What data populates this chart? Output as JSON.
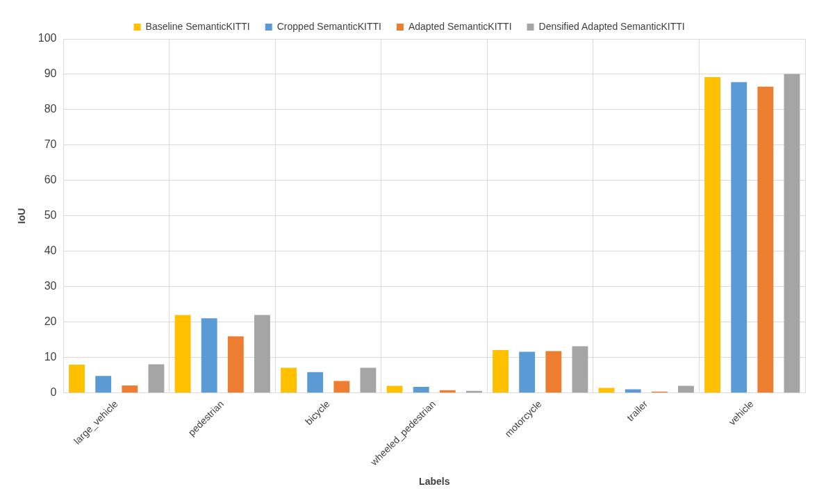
{
  "chart_data": {
    "type": "bar",
    "xlabel": "Labels",
    "ylabel": "IoU",
    "categories": [
      "large_vehicle",
      "pedestrian",
      "bicycle",
      "wheeled_pedestrian",
      "motorcycle",
      "trailer",
      "vehicle"
    ],
    "series": [
      {
        "name": "Baseline SemanticKITTI",
        "color": "#ffc000",
        "values": [
          8,
          22,
          7.1,
          2.0,
          12.1,
          1.4,
          89.2
        ]
      },
      {
        "name": "Cropped SemanticKITTI",
        "color": "#5b9bd5",
        "values": [
          4.8,
          21.1,
          5.9,
          1.7,
          11.6,
          1.0,
          87.8
        ]
      },
      {
        "name": "Adapted SemanticKITTI",
        "color": "#ed7d31",
        "values": [
          2.1,
          16,
          3.4,
          0.8,
          11.8,
          0.4,
          86.5
        ]
      },
      {
        "name": "Densified Adapted SemanticKITTI",
        "color": "#a5a5a5",
        "values": [
          8.1,
          22,
          7.1,
          0.6,
          13.2,
          2.0,
          90.1
        ]
      }
    ],
    "ylim": [
      0,
      100
    ],
    "yticks": [
      0,
      10,
      20,
      30,
      40,
      50,
      60,
      70,
      80,
      90,
      100
    ],
    "grid": true,
    "legend": "top"
  }
}
